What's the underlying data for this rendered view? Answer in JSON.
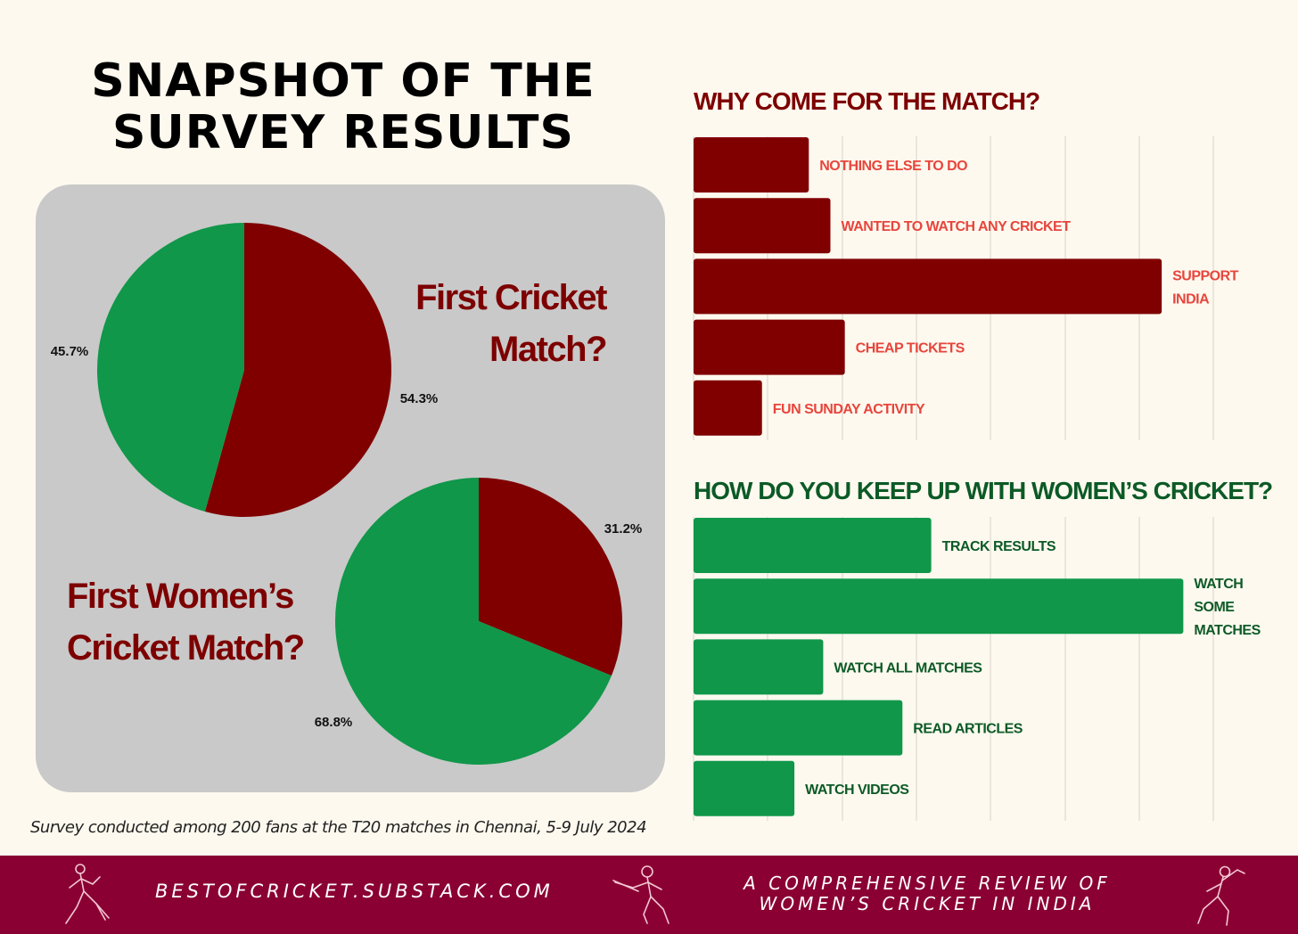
{
  "title": {
    "line1": "SNAPSHOT OF THE",
    "line2": "SURVEY RESULTS"
  },
  "colors": {
    "background": "#fdf9ef",
    "panel": "#c9c9c9",
    "maroon": "#800000",
    "green": "#10974a",
    "dark_green": "#0c5a26",
    "red_label": "#e8453c",
    "footer": "#8a0033"
  },
  "pie1_title": {
    "line1": "First Cricket",
    "line2": "Match?"
  },
  "pie2_title": {
    "line1": "First Women’s",
    "line2": "Cricket Match?"
  },
  "footnote": "Survey conducted among 200 fans at the T20 matches in Chennai, 5-9 July 2024",
  "chart_data": [
    {
      "type": "pie",
      "title": "First Cricket Match?",
      "slices": [
        {
          "value": 54.3,
          "label": "54.3%",
          "color": "#800000"
        },
        {
          "value": 45.7,
          "label": "45.7%",
          "color": "#10974a"
        }
      ]
    },
    {
      "type": "pie",
      "title": "First Women’s Cricket Match?",
      "slices": [
        {
          "value": 31.2,
          "label": "31.2%",
          "color": "#800000"
        },
        {
          "value": 68.8,
          "label": "68.8%",
          "color": "#10974a"
        }
      ]
    },
    {
      "type": "bar",
      "orientation": "horizontal",
      "title": "WHY COME FOR THE MATCH?",
      "categories": [
        "NOTHING ELSE TO DO",
        "WANTED TO WATCH ANY CRICKET",
        "SUPPORT INDIA",
        "CHEAP TICKETS",
        "FUN SUNDAY ACTIVITY"
      ],
      "label_lines": [
        [
          "NOTHING ELSE TO DO"
        ],
        [
          "WANTED TO WATCH ANY CRICKET"
        ],
        [
          "SUPPORT",
          "INDIA"
        ],
        [
          "CHEAP TICKETS"
        ],
        [
          "FUN SUNDAY ACTIVITY"
        ]
      ],
      "values": [
        16,
        19,
        65,
        21,
        9.5
      ],
      "xlim": [
        0,
        70
      ],
      "grid": true,
      "bar_color": "#800000",
      "label_color": "#e8453c"
    },
    {
      "type": "bar",
      "orientation": "horizontal",
      "title": "HOW DO YOU KEEP UP WITH WOMEN’S CRICKET?",
      "categories": [
        "TRACK RESULTS",
        "WATCH SOME MATCHES",
        "WATCH ALL MATCHES",
        "READ ARTICLES",
        "WATCH VIDEOS"
      ],
      "label_lines": [
        [
          "TRACK RESULTS"
        ],
        [
          "WATCH",
          "SOME",
          "MATCHES"
        ],
        [
          "WATCH ALL MATCHES"
        ],
        [
          "READ ARTICLES"
        ],
        [
          "WATCH VIDEOS"
        ]
      ],
      "values": [
        33,
        68,
        18,
        29,
        14
      ],
      "xlim": [
        0,
        70
      ],
      "grid": true,
      "bar_color": "#10974a",
      "label_color": "#0c5a26"
    }
  ],
  "footer": {
    "site": "BESTOFCRICKET.SUBSTACK.COM",
    "tagline_line1": "A COMPREHENSIVE REVIEW OF",
    "tagline_line2": "WOMEN’S CRICKET IN INDIA",
    "icons": [
      "cricketer-running-icon",
      "cricketer-batting-icon",
      "cricketer-bowling-icon"
    ]
  }
}
